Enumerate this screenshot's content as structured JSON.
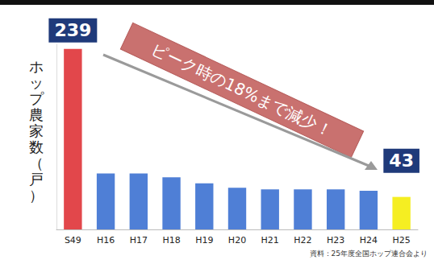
{
  "chart_data": {
    "type": "bar",
    "y_label": "ホップ農家数（戸）",
    "annotation": "ピーク時の18%まで減少！",
    "source": "資料：25年度全国ホップ連合会より",
    "categories": [
      "S49",
      "H16",
      "H17",
      "H18",
      "H19",
      "H20",
      "H21",
      "H22",
      "H23",
      "H24",
      "H25"
    ],
    "values": [
      239,
      74,
      74,
      69,
      61,
      55,
      53,
      53,
      53,
      51,
      43
    ],
    "value_labels": [
      "239",
      null,
      null,
      null,
      null,
      null,
      null,
      null,
      null,
      null,
      "43"
    ],
    "data_labels": true,
    "colors": [
      "#e2474b",
      "#4f7fd6",
      "#4f7fd6",
      "#4f7fd6",
      "#4f7fd6",
      "#4f7fd6",
      "#4f7fd6",
      "#4f7fd6",
      "#4f7fd6",
      "#4f7fd6",
      "#f5ee22"
    ],
    "ylim": [
      0,
      245
    ],
    "tick_labels": "x",
    "grid": false
  }
}
